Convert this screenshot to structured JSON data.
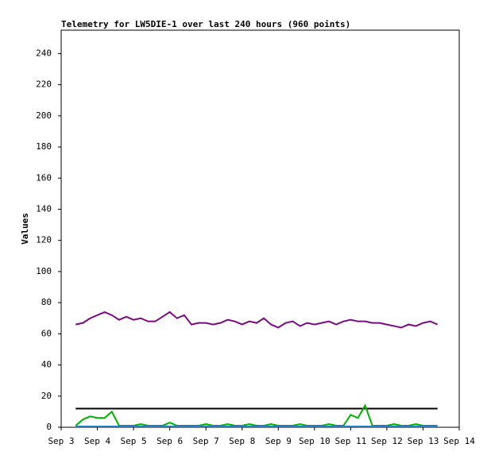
{
  "chart_data": {
    "type": "line",
    "title": "Telemetry for LW5DIE-1 over last 240 hours (960 points)",
    "y_label": "Values",
    "xlim": [
      3,
      14
    ],
    "ylim": [
      0,
      255
    ],
    "xticks": [
      {
        "value": 3,
        "label": "Sep 3"
      },
      {
        "value": 4,
        "label": "Sep 4"
      },
      {
        "value": 5,
        "label": "Sep 5"
      },
      {
        "value": 6,
        "label": "Sep 6"
      },
      {
        "value": 7,
        "label": "Sep 7"
      },
      {
        "value": 8,
        "label": "Sep 8"
      },
      {
        "value": 9,
        "label": "Sep 9"
      },
      {
        "value": 10,
        "label": "Sep 10"
      },
      {
        "value": 11,
        "label": "Sep 11"
      },
      {
        "value": 12,
        "label": "Sep 12"
      },
      {
        "value": 13,
        "label": "Sep 13"
      },
      {
        "value": 14,
        "label": "Sep 14"
      }
    ],
    "yticks": [
      0,
      20,
      40,
      60,
      80,
      100,
      120,
      140,
      160,
      180,
      200,
      220,
      240
    ],
    "x": [
      3.4,
      3.6,
      3.8,
      4.0,
      4.2,
      4.4,
      4.6,
      4.8,
      5.0,
      5.2,
      5.4,
      5.6,
      5.8,
      6.0,
      6.2,
      6.4,
      6.6,
      6.8,
      7.0,
      7.2,
      7.4,
      7.6,
      7.8,
      8.0,
      8.2,
      8.4,
      8.6,
      8.8,
      9.0,
      9.2,
      9.4,
      9.6,
      9.8,
      10.0,
      10.2,
      10.4,
      10.6,
      10.8,
      11.0,
      11.2,
      11.4,
      11.6,
      11.8,
      12.0,
      12.2,
      12.4,
      12.6,
      12.8,
      13.0,
      13.2,
      13.4
    ],
    "series": [
      {
        "color": "#7b0a82",
        "values": [
          66,
          67,
          70,
          72,
          74,
          72,
          69,
          71,
          69,
          70,
          68,
          68,
          71,
          74,
          70,
          72,
          66,
          67,
          67,
          66,
          67,
          69,
          68,
          66,
          68,
          67,
          70,
          66,
          64,
          67,
          68,
          65,
          67,
          66,
          67,
          68,
          66,
          68,
          69,
          68,
          68,
          67,
          67,
          66,
          65,
          64,
          66,
          65,
          67,
          68,
          66
        ]
      },
      {
        "color": "#000000",
        "values": [
          12,
          12,
          12,
          12,
          12,
          12,
          12,
          12,
          12,
          12,
          12,
          12,
          12,
          12,
          12,
          12,
          12,
          12,
          12,
          12,
          12,
          12,
          12,
          12,
          12,
          12,
          12,
          12,
          12,
          12,
          12,
          12,
          12,
          12,
          12,
          12,
          12,
          12,
          12,
          12,
          12,
          12,
          12,
          12,
          12,
          12,
          12,
          12,
          12,
          12,
          12
        ]
      },
      {
        "color": "#00b000",
        "values": [
          1,
          5,
          7,
          6,
          6,
          10,
          1,
          1,
          1,
          2,
          1,
          1,
          1,
          3,
          1,
          1,
          1,
          1,
          2,
          1,
          1,
          2,
          1,
          1,
          2,
          1,
          1,
          2,
          1,
          1,
          1,
          2,
          1,
          1,
          1,
          2,
          1,
          1,
          8,
          6,
          14,
          1,
          1,
          1,
          2,
          1,
          1,
          2,
          1,
          1,
          1
        ]
      },
      {
        "color": "#1e7fc8",
        "values": [
          0.5,
          0.5,
          0.5,
          0.5,
          0.5,
          0.5,
          0.5,
          0.5,
          0.5,
          0.5,
          0.5,
          0.5,
          0.5,
          0.5,
          0.5,
          0.5,
          0.5,
          0.5,
          0.5,
          0.5,
          0.5,
          0.5,
          0.5,
          0.5,
          0.5,
          0.5,
          0.5,
          0.5,
          0.5,
          0.5,
          0.5,
          0.5,
          0.5,
          0.5,
          0.5,
          0.5,
          0.5,
          0.5,
          0.5,
          0.5,
          0.5,
          0.5,
          0.5,
          0.5,
          0.5,
          0.5,
          0.5,
          0.5,
          0.5,
          0.5,
          0.5
        ]
      }
    ]
  }
}
